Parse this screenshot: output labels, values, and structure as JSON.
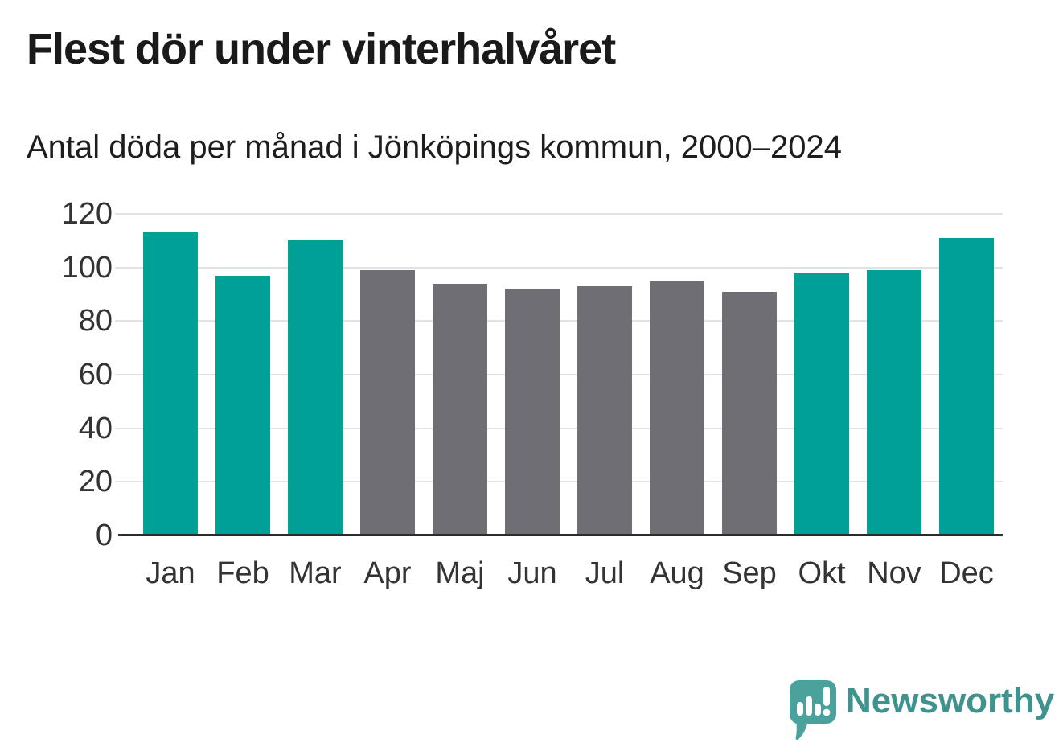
{
  "title": "Flest dör under vinterhalvåret",
  "subtitle": "Antal döda per månad i Jönköpings kommun, 2000–2024",
  "branding": {
    "logo_text": "Newsworthy",
    "logo_text_color": "#3e938e",
    "logo_mark_color": "#4ba19c",
    "logo_mark_glyph_color": "#ffffff"
  },
  "colors": {
    "teal": "#00a096",
    "gray": "#6f6e74",
    "gridline": "#e2e2e2",
    "axis_line": "#2d2d2d",
    "title_text": "#1a1a1a",
    "subtitle_text": "#1d1d1b",
    "axis_text": "#333333",
    "background": "#ffffff"
  },
  "chart_data": {
    "type": "bar",
    "title": "Flest dör under vinterhalvåret",
    "subtitle": "Antal döda per månad i Jönköpings kommun, 2000–2024",
    "categories": [
      "Jan",
      "Feb",
      "Mar",
      "Apr",
      "Maj",
      "Jun",
      "Jul",
      "Aug",
      "Sep",
      "Okt",
      "Nov",
      "Dec"
    ],
    "values": [
      113,
      97,
      110,
      99,
      94,
      92,
      93,
      95,
      91,
      98,
      99,
      111
    ],
    "bar_colors": [
      "teal",
      "teal",
      "teal",
      "gray",
      "gray",
      "gray",
      "gray",
      "gray",
      "gray",
      "teal",
      "teal",
      "teal"
    ],
    "xlabel": "",
    "ylabel": "",
    "ylim": [
      0,
      120
    ],
    "yticks": [
      0,
      20,
      40,
      60,
      80,
      100,
      120
    ],
    "grid": "horizontal",
    "legend": "none"
  }
}
